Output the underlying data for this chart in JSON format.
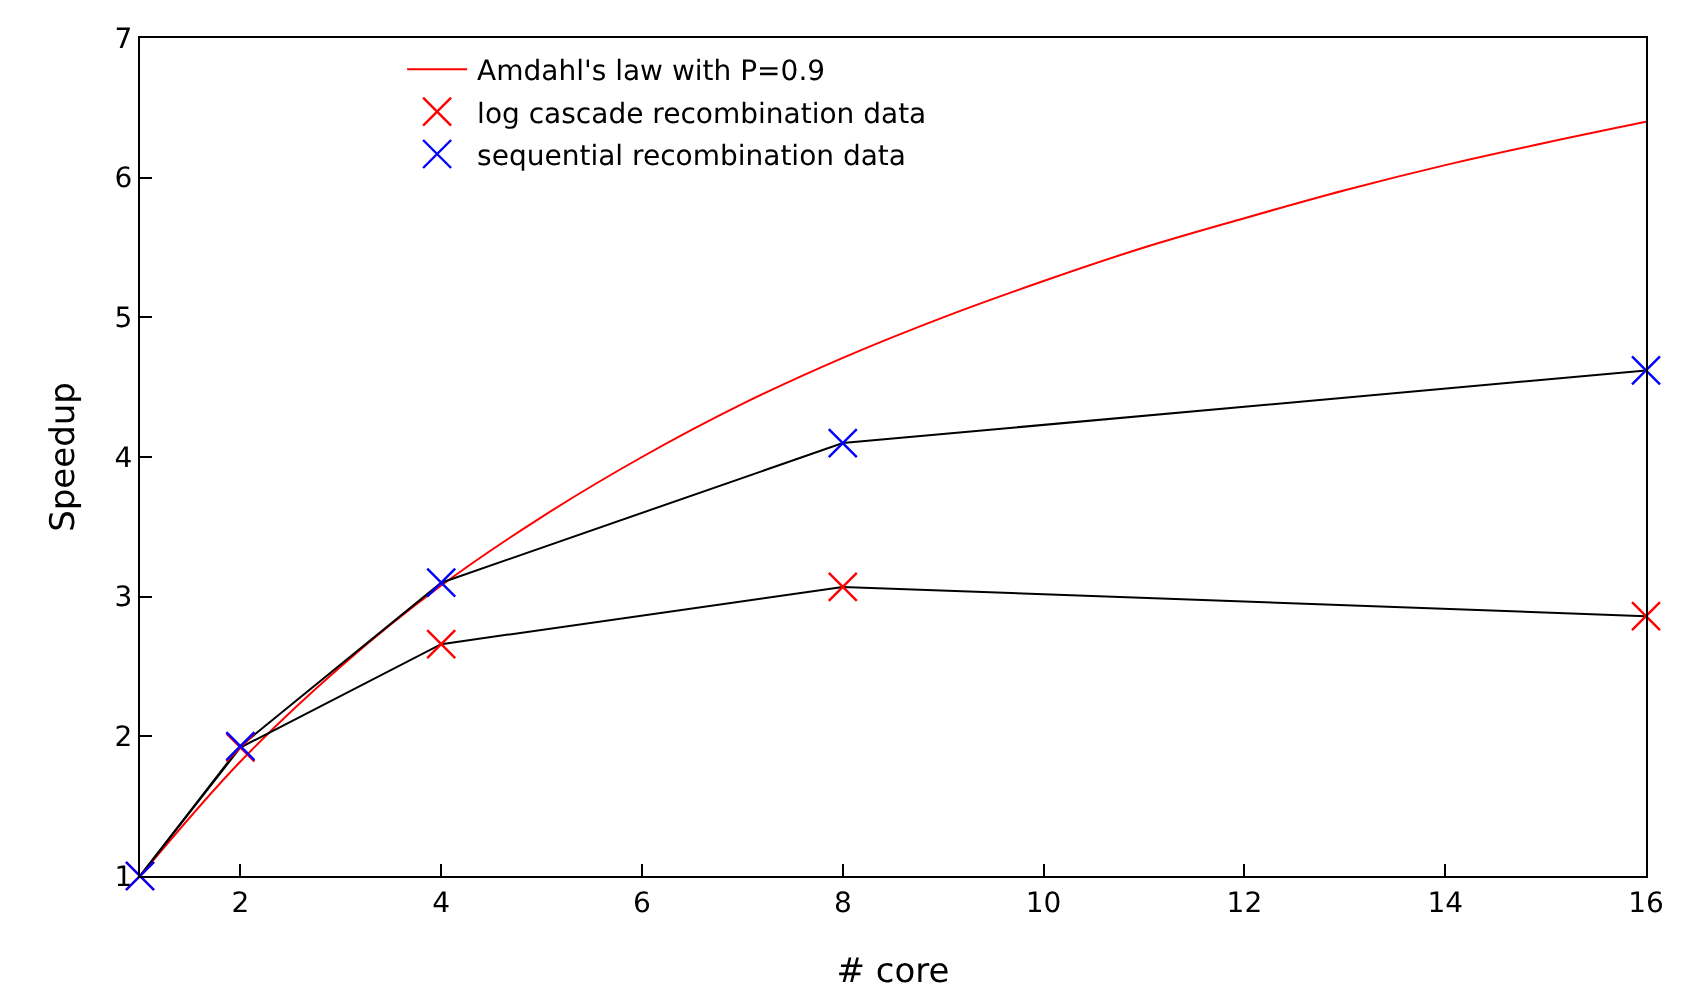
{
  "chart_data": {
    "type": "scatter",
    "xlabel": "# core",
    "ylabel": "Speedup",
    "xlim": [
      1,
      16
    ],
    "xticks": [
      2,
      4,
      6,
      8,
      10,
      12,
      14,
      16
    ],
    "ylim": [
      1,
      7
    ],
    "yticks": [
      1,
      2,
      3,
      4,
      5,
      6,
      7
    ],
    "grid": false,
    "legend": "top",
    "marker": "cross",
    "series": [
      {
        "name": "Amdahl's law with P=0.9",
        "type": "line",
        "marker": "none",
        "color": "#ff0000",
        "x": [
          1,
          2,
          3,
          4,
          5,
          6,
          7,
          8,
          9,
          10,
          11,
          12,
          13,
          14,
          15,
          16
        ],
        "values": [
          1,
          1.82,
          2.5,
          3.08,
          3.57,
          4,
          4.38,
          4.71,
          5,
          5.26,
          5.5,
          5.71,
          5.91,
          6.09,
          6.25,
          6.4
        ]
      },
      {
        "type": "line",
        "marker": "none",
        "color": "#000000",
        "x": [
          1,
          2,
          4,
          8,
          16
        ],
        "values": [
          1,
          1.92,
          2.66,
          3.07,
          2.86
        ]
      },
      {
        "type": "line",
        "marker": "none",
        "color": "#000000",
        "x": [
          1,
          2,
          4,
          8,
          16
        ],
        "values": [
          1,
          1.93,
          3.1,
          4.1,
          4.62
        ]
      },
      {
        "name": "log cascade recombination data",
        "color": "#ff0000",
        "x": [
          1,
          2,
          4,
          8,
          16
        ],
        "values": [
          1,
          1.92,
          2.66,
          3.07,
          2.86
        ]
      },
      {
        "name": "sequential recombination data",
        "color": "#0000ff",
        "x": [
          1,
          2,
          4,
          8,
          16
        ],
        "values": [
          1,
          1.93,
          3.1,
          4.1,
          4.62
        ]
      }
    ]
  }
}
